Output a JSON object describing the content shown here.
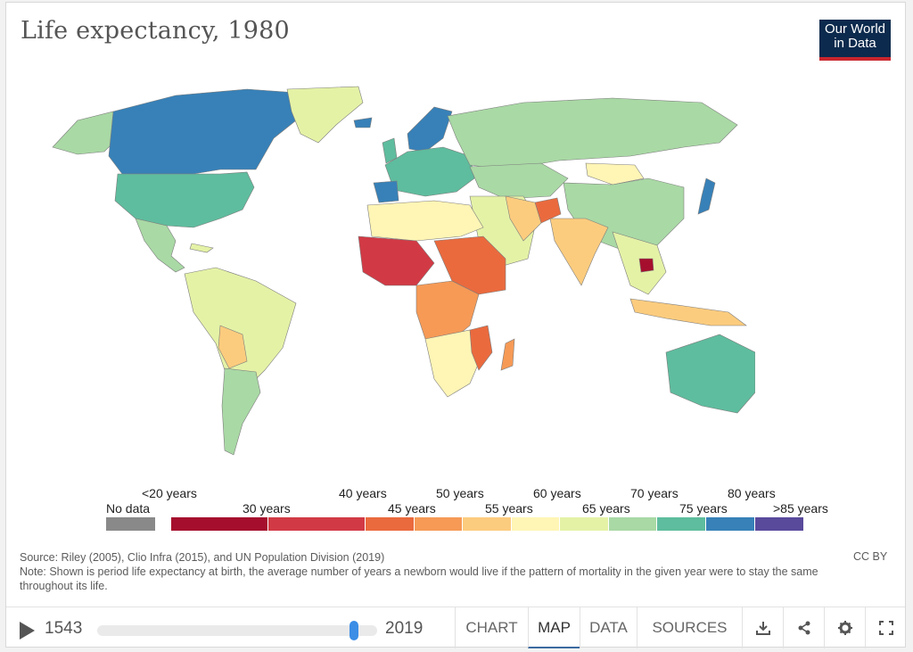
{
  "title": "Life expectancy, 1980",
  "logo": {
    "line1": "Our World",
    "line2": "in Data"
  },
  "legend": {
    "no_data_label": "No data",
    "top_labels": [
      "<20 years",
      "40 years",
      "50 years",
      "60 years",
      "70 years",
      "80 years"
    ],
    "bottom_labels": [
      "30 years",
      "45 years",
      "55 years",
      "65 years",
      "75 years",
      ">85 years"
    ],
    "colors": [
      "#a50f2d",
      "#d13a45",
      "#ea6a3e",
      "#f69a56",
      "#fccc7e",
      "#fff5b5",
      "#e4f2a6",
      "#a9d9a5",
      "#5ebd9e",
      "#3781b8",
      "#5a4a9c"
    ],
    "no_data_color": "#898989"
  },
  "source": "Source: Riley (2005), Clio Infra (2015), and UN Population Division (2019)",
  "note": "Note: Shown is period life expectancy at birth, the average number of years a newborn would live if the pattern of mortality in the given year were to stay the same throughout its life.",
  "license": "CC BY",
  "timeline": {
    "start": "1543",
    "end": "2019",
    "selected_year": 1980,
    "min_year": 1543,
    "max_year": 2019
  },
  "tabs": [
    "CHART",
    "MAP",
    "DATA",
    "SOURCES"
  ],
  "active_tab": "MAP",
  "map_colors": {
    "ocean_land_border": "#7d7d7d",
    "north_america_canada": "#3781b8",
    "usa": "#5ebd9e",
    "latin_america": "#a9d9a5",
    "south_america": "#e4f2a6",
    "greenland": "#e4f2a6",
    "europe": "#5ebd9e",
    "russia": "#a9d9a5",
    "china": "#a9d9a5",
    "india": "#fccc7e",
    "africa_north": "#fff5b5",
    "africa_west": "#d13a45",
    "africa_central": "#f69a56",
    "africa_south": "#fff5b5",
    "australia": "#5ebd9e",
    "japan": "#3781b8",
    "scandinavia": "#3781b8"
  }
}
